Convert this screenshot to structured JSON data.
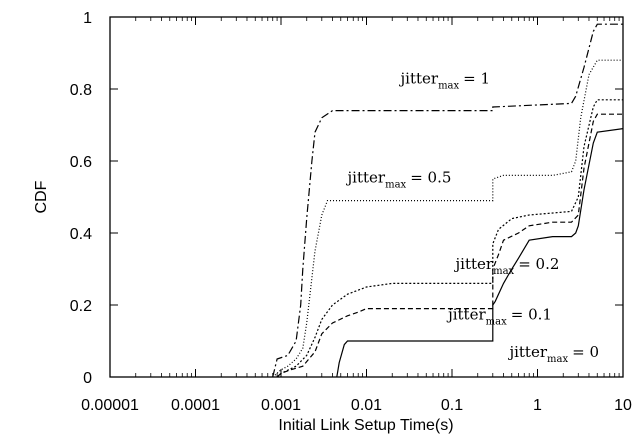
{
  "chart_data": {
    "type": "line",
    "title": "",
    "xlabel": "Initial Link Setup Time(s)",
    "ylabel": "CDF",
    "xscale": "log",
    "xlim": [
      1e-05,
      10
    ],
    "ylim": [
      0,
      1
    ],
    "grid": false,
    "x_ticks": [
      "0.00001",
      "0.0001",
      "0.001",
      "0.01",
      "0.1",
      "1",
      "10"
    ],
    "y_ticks": [
      "0",
      "0.2",
      "0.4",
      "0.6",
      "0.8",
      "1"
    ],
    "series": [
      {
        "label_prefix": "jitter",
        "label_sub": "max",
        "label_value": "= 0",
        "dash": "solid",
        "label_at": [
          0.47,
          0.055
        ],
        "points": [
          [
            0.0045,
            0
          ],
          [
            0.0048,
            0.04
          ],
          [
            0.0055,
            0.09
          ],
          [
            0.006,
            0.1
          ],
          [
            0.3,
            0.1
          ],
          [
            0.3,
            0.2
          ],
          [
            0.32,
            0.21
          ],
          [
            0.4,
            0.26
          ],
          [
            0.5,
            0.3
          ],
          [
            0.6,
            0.33
          ],
          [
            0.8,
            0.38
          ],
          [
            1.5,
            0.39
          ],
          [
            2.5,
            0.39
          ],
          [
            2.8,
            0.4
          ],
          [
            3.0,
            0.42
          ],
          [
            3.5,
            0.52
          ],
          [
            4.5,
            0.65
          ],
          [
            5,
            0.68
          ],
          [
            10,
            0.69
          ]
        ]
      },
      {
        "label_prefix": "jitter",
        "label_sub": "max",
        "label_value": "= 0.1",
        "dash": "dashed",
        "label_at": [
          0.09,
          0.16
        ],
        "points": [
          [
            0.0009,
            0
          ],
          [
            0.001,
            0.01
          ],
          [
            0.0013,
            0.02
          ],
          [
            0.0018,
            0.03
          ],
          [
            0.0025,
            0.07
          ],
          [
            0.003,
            0.12
          ],
          [
            0.004,
            0.15
          ],
          [
            0.006,
            0.17
          ],
          [
            0.008,
            0.18
          ],
          [
            0.01,
            0.19
          ],
          [
            0.3,
            0.19
          ],
          [
            0.3,
            0.3
          ],
          [
            0.35,
            0.34
          ],
          [
            0.4,
            0.38
          ],
          [
            0.6,
            0.4
          ],
          [
            0.8,
            0.42
          ],
          [
            1.5,
            0.43
          ],
          [
            2.5,
            0.43
          ],
          [
            3.0,
            0.45
          ],
          [
            3.5,
            0.58
          ],
          [
            4.5,
            0.71
          ],
          [
            5,
            0.73
          ],
          [
            10,
            0.73
          ]
        ]
      },
      {
        "label_prefix": "jitter",
        "label_sub": "max",
        "label_value": "= 0.2",
        "dash": "dotted-fine",
        "label_at": [
          0.11,
          0.3
        ],
        "points": [
          [
            0.0009,
            0
          ],
          [
            0.001,
            0.01
          ],
          [
            0.0015,
            0.03
          ],
          [
            0.002,
            0.06
          ],
          [
            0.0025,
            0.11
          ],
          [
            0.003,
            0.16
          ],
          [
            0.004,
            0.2
          ],
          [
            0.006,
            0.23
          ],
          [
            0.01,
            0.25
          ],
          [
            0.02,
            0.26
          ],
          [
            0.3,
            0.26
          ],
          [
            0.3,
            0.37
          ],
          [
            0.35,
            0.41
          ],
          [
            0.5,
            0.44
          ],
          [
            0.8,
            0.45
          ],
          [
            2.5,
            0.46
          ],
          [
            3.0,
            0.5
          ],
          [
            3.5,
            0.64
          ],
          [
            4.5,
            0.75
          ],
          [
            5,
            0.77
          ],
          [
            10,
            0.77
          ]
        ]
      },
      {
        "label_prefix": "jitter",
        "label_sub": "max",
        "label_value": "= 0.5",
        "dash": "dotted",
        "label_at": [
          0.006,
          0.54
        ],
        "points": [
          [
            0.0008,
            0
          ],
          [
            0.001,
            0.02
          ],
          [
            0.0012,
            0.03
          ],
          [
            0.0015,
            0.05
          ],
          [
            0.0018,
            0.08
          ],
          [
            0.002,
            0.15
          ],
          [
            0.0025,
            0.35
          ],
          [
            0.003,
            0.45
          ],
          [
            0.0035,
            0.49
          ],
          [
            0.005,
            0.49
          ],
          [
            0.3,
            0.49
          ],
          [
            0.3,
            0.55
          ],
          [
            0.4,
            0.56
          ],
          [
            1.5,
            0.56
          ],
          [
            2.5,
            0.57
          ],
          [
            2.8,
            0.6
          ],
          [
            3.2,
            0.72
          ],
          [
            4,
            0.84
          ],
          [
            5,
            0.88
          ],
          [
            10,
            0.88
          ]
        ]
      },
      {
        "label_prefix": "jitter",
        "label_sub": "max",
        "label_value": "= 1",
        "dash": "dashdot",
        "label_at": [
          0.025,
          0.815
        ],
        "points": [
          [
            0.0008,
            0
          ],
          [
            0.0009,
            0.05
          ],
          [
            0.0012,
            0.06
          ],
          [
            0.0015,
            0.1
          ],
          [
            0.0017,
            0.2
          ],
          [
            0.0018,
            0.3
          ],
          [
            0.002,
            0.44
          ],
          [
            0.0023,
            0.6
          ],
          [
            0.0025,
            0.68
          ],
          [
            0.003,
            0.72
          ],
          [
            0.004,
            0.74
          ],
          [
            0.3,
            0.74
          ],
          [
            0.3,
            0.75
          ],
          [
            2.5,
            0.76
          ],
          [
            2.8,
            0.78
          ],
          [
            3.5,
            0.86
          ],
          [
            4.5,
            0.96
          ],
          [
            5,
            0.98
          ],
          [
            10,
            0.98
          ]
        ]
      }
    ]
  }
}
